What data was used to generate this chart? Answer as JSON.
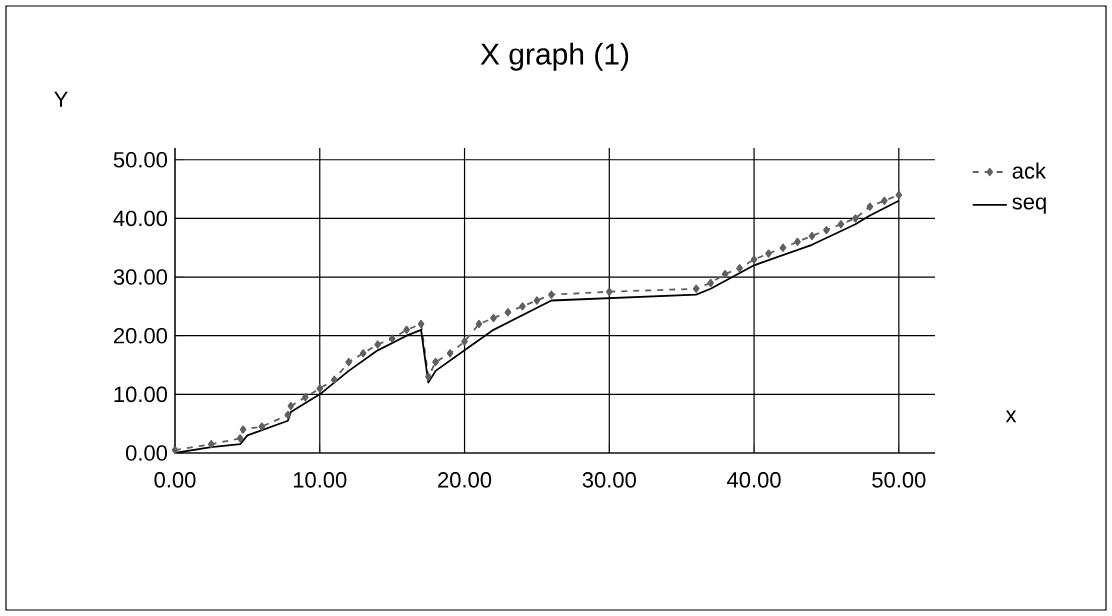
{
  "chart_data": {
    "type": "line",
    "title": "X graph (1)",
    "xlabel": "x",
    "ylabel": "Y",
    "xlim": [
      0,
      52.5
    ],
    "ylim": [
      0,
      52
    ],
    "xticks": [
      {
        "value": 0,
        "label": "0.00"
      },
      {
        "value": 10,
        "label": "10.00"
      },
      {
        "value": 20,
        "label": "20.00"
      },
      {
        "value": 30,
        "label": "30.00"
      },
      {
        "value": 40,
        "label": "40.00"
      },
      {
        "value": 50,
        "label": "50.00"
      }
    ],
    "yticks": [
      {
        "value": 0,
        "label": "0.00"
      },
      {
        "value": 10,
        "label": "10.00"
      },
      {
        "value": 20,
        "label": "20.00"
      },
      {
        "value": 30,
        "label": "30.00"
      },
      {
        "value": 40,
        "label": "40.00"
      },
      {
        "value": 50,
        "label": "50.00"
      }
    ],
    "grid": true,
    "legend": "right",
    "series": [
      {
        "name": "ack",
        "color": "#606060",
        "line_style": "dashed",
        "marker": "diamond",
        "x": [
          0,
          2.5,
          4.5,
          4.7,
          6,
          7.8,
          8,
          9,
          10,
          11,
          12,
          13,
          14,
          15,
          16,
          17,
          17.5,
          18,
          19,
          20,
          21,
          22,
          23,
          24,
          25,
          26,
          30,
          36,
          37,
          38,
          39,
          40,
          41,
          42,
          43,
          44,
          45,
          46,
          47,
          48,
          49,
          50
        ],
        "values": [
          0.5,
          1.5,
          2.5,
          4,
          4.5,
          6.5,
          8,
          9.5,
          11,
          12.5,
          15.5,
          17,
          18.5,
          19.5,
          21,
          22,
          13,
          15.5,
          17,
          19,
          22,
          23,
          24,
          25,
          26,
          27,
          27.5,
          28,
          29,
          30.5,
          31.5,
          33,
          34,
          35,
          36,
          37,
          38,
          39,
          40,
          42,
          43,
          44
        ]
      },
      {
        "name": "seq",
        "color": "#000000",
        "line_style": "solid",
        "marker": "none",
        "x": [
          0,
          2.5,
          4.5,
          5,
          7.8,
          8,
          10,
          12,
          14,
          16,
          17,
          17.5,
          18,
          20,
          22,
          24,
          26,
          36,
          37,
          40,
          44,
          47,
          48,
          50
        ],
        "values": [
          0,
          1,
          1.5,
          3,
          5.5,
          7,
          10,
          14,
          17.5,
          20,
          21,
          12,
          14,
          17.5,
          21,
          23.5,
          26,
          27,
          28,
          32,
          35.5,
          39,
          40.5,
          43
        ]
      }
    ]
  }
}
